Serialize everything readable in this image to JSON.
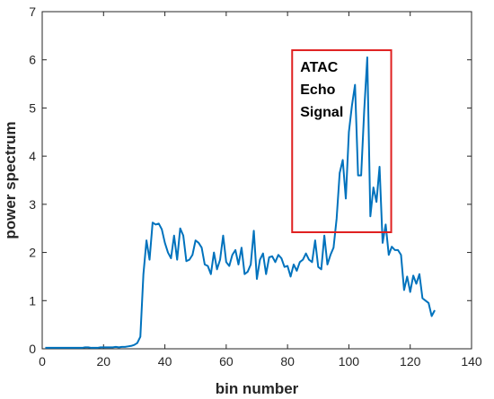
{
  "chart_data": {
    "type": "line",
    "xlabel": "bin number",
    "ylabel": "power spectrum",
    "xlim": [
      0,
      140
    ],
    "ylim": [
      0,
      7
    ],
    "xticks": [
      0,
      20,
      40,
      60,
      80,
      100,
      120,
      140
    ],
    "yticks": [
      0,
      1,
      2,
      3,
      4,
      5,
      6,
      7
    ],
    "grid": false,
    "series": [
      {
        "color": "#0072BD",
        "x": [
          1,
          2,
          3,
          4,
          5,
          6,
          7,
          8,
          9,
          10,
          11,
          12,
          13,
          14,
          15,
          16,
          17,
          18,
          19,
          20,
          21,
          22,
          23,
          24,
          25,
          26,
          27,
          28,
          29,
          30,
          31,
          32,
          33,
          34,
          35,
          36,
          37,
          38,
          39,
          40,
          41,
          42,
          43,
          44,
          45,
          46,
          47,
          48,
          49,
          50,
          51,
          52,
          53,
          54,
          55,
          56,
          57,
          58,
          59,
          60,
          61,
          62,
          63,
          64,
          65,
          66,
          67,
          68,
          69,
          70,
          71,
          72,
          73,
          74,
          75,
          76,
          77,
          78,
          79,
          80,
          81,
          82,
          83,
          84,
          85,
          86,
          87,
          88,
          89,
          90,
          91,
          92,
          93,
          94,
          95,
          96,
          97,
          98,
          99,
          100,
          101,
          102,
          103,
          104,
          105,
          106,
          107,
          108,
          109,
          110,
          111,
          112,
          113,
          114,
          115,
          116,
          117,
          118,
          119,
          120,
          121,
          122,
          123,
          124,
          125,
          126,
          127,
          128
        ],
        "values": [
          0.02,
          0.02,
          0.02,
          0.02,
          0.02,
          0.02,
          0.02,
          0.02,
          0.02,
          0.02,
          0.02,
          0.02,
          0.02,
          0.03,
          0.03,
          0.02,
          0.02,
          0.02,
          0.03,
          0.03,
          0.03,
          0.03,
          0.03,
          0.04,
          0.03,
          0.04,
          0.04,
          0.05,
          0.06,
          0.08,
          0.12,
          0.25,
          1.55,
          2.25,
          1.85,
          2.62,
          2.58,
          2.6,
          2.48,
          2.2,
          2.0,
          1.88,
          2.35,
          1.85,
          2.5,
          2.35,
          1.82,
          1.85,
          1.95,
          2.25,
          2.2,
          2.1,
          1.75,
          1.72,
          1.55,
          2.0,
          1.65,
          1.85,
          2.35,
          1.8,
          1.72,
          1.95,
          2.05,
          1.75,
          2.1,
          1.55,
          1.6,
          1.75,
          2.45,
          1.45,
          1.85,
          1.98,
          1.55,
          1.9,
          1.92,
          1.8,
          1.95,
          1.88,
          1.7,
          1.72,
          1.5,
          1.75,
          1.62,
          1.8,
          1.85,
          1.98,
          1.85,
          1.8,
          2.25,
          1.7,
          1.65,
          2.35,
          1.75,
          1.95,
          2.1,
          2.7,
          3.65,
          3.92,
          3.12,
          4.5,
          5.05,
          5.48,
          3.6,
          3.6,
          4.95,
          6.05,
          2.75,
          3.35,
          3.05,
          3.78,
          2.2,
          2.58,
          1.95,
          2.12,
          2.05,
          2.05,
          1.95,
          1.22,
          1.5,
          1.18,
          1.52,
          1.35,
          1.55,
          1.05,
          1.0,
          0.95,
          0.68,
          0.8
        ]
      }
    ],
    "annotation": {
      "lines": [
        "ATAC",
        "Echo",
        "Signal"
      ],
      "box_color": "#e02020",
      "x_range": [
        81.5,
        113.8
      ],
      "y_range": [
        2.42,
        6.2
      ]
    }
  }
}
